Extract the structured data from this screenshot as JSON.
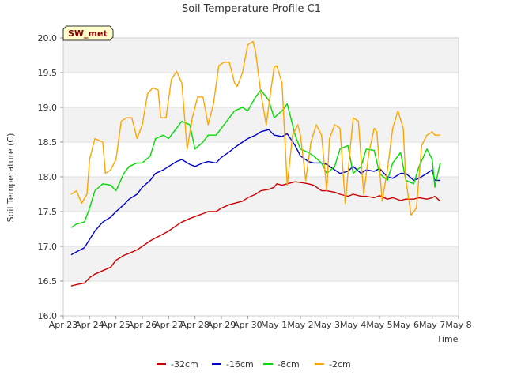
{
  "chart_data": {
    "type": "line",
    "title": "Soil Temperature Profile C1",
    "xlabel": "Time",
    "ylabel": "Soil Temperature (C)",
    "badge": "SW_met",
    "xlim": [
      0,
      15
    ],
    "ylim": [
      16.0,
      20.0
    ],
    "x_tick_labels": [
      "Apr 23",
      "Apr 24",
      "Apr 25",
      "Apr 26",
      "Apr 27",
      "Apr 28",
      "Apr 29",
      "Apr 30",
      "May 1",
      "May 2",
      "May 3",
      "May 4",
      "May 5",
      "May 6",
      "May 7",
      "May 8"
    ],
    "y_ticks": [
      16.0,
      16.5,
      17.0,
      17.5,
      18.0,
      18.5,
      19.0,
      19.5,
      20.0
    ],
    "y_tick_labels": [
      "16.0",
      "16.5",
      "17.0",
      "17.5",
      "18.0",
      "18.5",
      "19.0",
      "19.5",
      "20.0"
    ],
    "grid": true,
    "legend_position": "bottom",
    "series": [
      {
        "name": "-32cm",
        "color": "#cc0000",
        "x": [
          0.3,
          0.5,
          0.8,
          1.0,
          1.2,
          1.5,
          1.8,
          2.0,
          2.3,
          2.5,
          2.8,
          3.0,
          3.3,
          3.5,
          3.8,
          4.0,
          4.3,
          4.5,
          4.8,
          5.0,
          5.3,
          5.5,
          5.8,
          6.0,
          6.3,
          6.5,
          6.8,
          7.0,
          7.3,
          7.5,
          7.8,
          8.0,
          8.1,
          8.3,
          8.5,
          8.8,
          9.0,
          9.3,
          9.5,
          9.8,
          10.0,
          10.3,
          10.5,
          10.8,
          11.0,
          11.3,
          11.5,
          11.8,
          12.0,
          12.3,
          12.5,
          12.8,
          13.0,
          13.3,
          13.5,
          13.8,
          14.0,
          14.1,
          14.3
        ],
        "y": [
          16.43,
          16.45,
          16.47,
          16.55,
          16.6,
          16.65,
          16.7,
          16.8,
          16.87,
          16.9,
          16.95,
          17.0,
          17.08,
          17.12,
          17.18,
          17.22,
          17.3,
          17.35,
          17.4,
          17.43,
          17.47,
          17.5,
          17.5,
          17.55,
          17.6,
          17.62,
          17.65,
          17.7,
          17.75,
          17.8,
          17.82,
          17.85,
          17.9,
          17.88,
          17.9,
          17.93,
          17.92,
          17.9,
          17.88,
          17.8,
          17.8,
          17.78,
          17.75,
          17.72,
          17.75,
          17.72,
          17.72,
          17.7,
          17.73,
          17.68,
          17.7,
          17.66,
          17.68,
          17.68,
          17.7,
          17.68,
          17.7,
          17.72,
          17.65
        ]
      },
      {
        "name": "-16cm",
        "color": "#0000cc",
        "x": [
          0.3,
          0.5,
          0.8,
          1.0,
          1.2,
          1.5,
          1.8,
          2.0,
          2.3,
          2.5,
          2.8,
          3.0,
          3.3,
          3.5,
          3.8,
          4.0,
          4.3,
          4.5,
          4.8,
          5.0,
          5.3,
          5.5,
          5.8,
          6.0,
          6.3,
          6.5,
          6.8,
          7.0,
          7.3,
          7.5,
          7.8,
          8.0,
          8.3,
          8.5,
          8.8,
          9.0,
          9.3,
          9.5,
          9.8,
          10.0,
          10.3,
          10.5,
          10.8,
          11.0,
          11.3,
          11.5,
          11.8,
          12.0,
          12.3,
          12.5,
          12.8,
          13.0,
          13.3,
          13.5,
          13.8,
          14.0,
          14.1,
          14.3
        ],
        "y": [
          16.88,
          16.92,
          16.98,
          17.1,
          17.22,
          17.35,
          17.42,
          17.5,
          17.6,
          17.68,
          17.75,
          17.85,
          17.95,
          18.05,
          18.1,
          18.15,
          18.22,
          18.25,
          18.18,
          18.15,
          18.2,
          18.22,
          18.2,
          18.28,
          18.36,
          18.42,
          18.5,
          18.55,
          18.6,
          18.65,
          18.68,
          18.6,
          18.58,
          18.62,
          18.45,
          18.3,
          18.22,
          18.2,
          18.2,
          18.18,
          18.1,
          18.05,
          18.08,
          18.15,
          18.05,
          18.1,
          18.08,
          18.12,
          18.0,
          17.98,
          18.05,
          18.05,
          17.95,
          17.98,
          18.05,
          18.1,
          17.95,
          17.95
        ]
      },
      {
        "name": "-8cm",
        "color": "#00dd00",
        "x": [
          0.3,
          0.5,
          0.8,
          1.0,
          1.2,
          1.5,
          1.8,
          2.0,
          2.3,
          2.5,
          2.8,
          3.0,
          3.3,
          3.5,
          3.8,
          4.0,
          4.3,
          4.5,
          4.8,
          5.0,
          5.3,
          5.5,
          5.8,
          6.0,
          6.3,
          6.5,
          6.8,
          7.0,
          7.3,
          7.5,
          7.8,
          8.0,
          8.3,
          8.5,
          8.8,
          9.0,
          9.3,
          9.5,
          9.8,
          10.0,
          10.3,
          10.5,
          10.8,
          11.0,
          11.3,
          11.5,
          11.8,
          12.0,
          12.3,
          12.5,
          12.8,
          13.0,
          13.3,
          13.5,
          13.8,
          14.0,
          14.1,
          14.3
        ],
        "y": [
          17.27,
          17.32,
          17.35,
          17.55,
          17.8,
          17.9,
          17.88,
          17.8,
          18.05,
          18.15,
          18.2,
          18.2,
          18.3,
          18.55,
          18.6,
          18.55,
          18.7,
          18.8,
          18.75,
          18.4,
          18.5,
          18.6,
          18.6,
          18.7,
          18.85,
          18.95,
          19.0,
          18.95,
          19.15,
          19.25,
          19.1,
          18.85,
          18.95,
          19.05,
          18.6,
          18.4,
          18.35,
          18.3,
          18.2,
          18.05,
          18.15,
          18.4,
          18.45,
          18.05,
          18.15,
          18.4,
          18.38,
          18.05,
          17.95,
          18.2,
          18.35,
          17.95,
          17.9,
          18.15,
          18.4,
          18.25,
          17.85,
          18.2
        ]
      },
      {
        "name": "-2cm",
        "color": "#ffa500",
        "x": [
          0.3,
          0.5,
          0.7,
          0.9,
          1.0,
          1.2,
          1.5,
          1.6,
          1.8,
          2.0,
          2.2,
          2.4,
          2.6,
          2.8,
          3.0,
          3.2,
          3.4,
          3.6,
          3.7,
          3.9,
          4.1,
          4.3,
          4.5,
          4.7,
          4.9,
          5.1,
          5.3,
          5.5,
          5.7,
          5.9,
          6.1,
          6.3,
          6.5,
          6.6,
          6.8,
          7.0,
          7.2,
          7.3,
          7.5,
          7.7,
          7.9,
          8.0,
          8.1,
          8.3,
          8.5,
          8.7,
          8.9,
          9.0,
          9.2,
          9.4,
          9.6,
          9.8,
          10.0,
          10.1,
          10.3,
          10.5,
          10.7,
          10.9,
          11.0,
          11.2,
          11.4,
          11.6,
          11.8,
          11.9,
          12.1,
          12.3,
          12.5,
          12.7,
          12.9,
          13.0,
          13.2,
          13.4,
          13.6,
          13.8,
          13.9,
          14.0,
          14.1,
          14.3
        ],
        "y": [
          17.75,
          17.8,
          17.62,
          17.75,
          18.25,
          18.55,
          18.5,
          18.05,
          18.1,
          18.25,
          18.8,
          18.85,
          18.85,
          18.55,
          18.75,
          19.2,
          19.28,
          19.25,
          18.85,
          18.85,
          19.4,
          19.52,
          19.35,
          18.4,
          18.85,
          19.15,
          19.15,
          18.75,
          19.05,
          19.6,
          19.65,
          19.65,
          19.35,
          19.3,
          19.5,
          19.9,
          19.95,
          19.8,
          19.2,
          18.75,
          19.3,
          19.58,
          19.6,
          19.35,
          17.88,
          18.6,
          18.75,
          18.6,
          17.95,
          18.5,
          18.75,
          18.6,
          17.8,
          18.55,
          18.75,
          18.7,
          17.62,
          18.45,
          18.85,
          18.8,
          17.75,
          18.35,
          18.7,
          18.65,
          17.65,
          18.1,
          18.7,
          18.95,
          18.7,
          17.95,
          17.45,
          17.55,
          18.45,
          18.6,
          18.62,
          18.65,
          18.6,
          18.6
        ]
      }
    ]
  }
}
